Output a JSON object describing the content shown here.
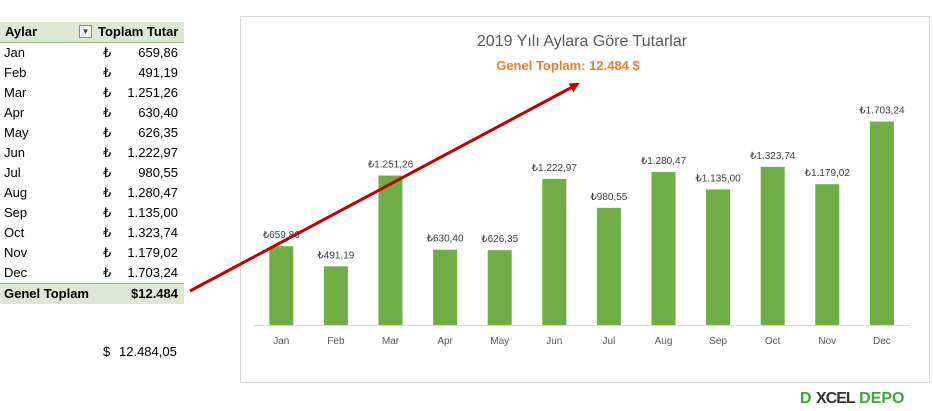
{
  "pivot": {
    "header": {
      "col1": "Aylar",
      "col2": "Toplam Tutar"
    },
    "currency_symbol": "₺",
    "rows": [
      {
        "month": "Jan",
        "value": "659,86"
      },
      {
        "month": "Feb",
        "value": "491,19"
      },
      {
        "month": "Mar",
        "value": "1.251,26"
      },
      {
        "month": "Apr",
        "value": "630,40"
      },
      {
        "month": "May",
        "value": "626,35"
      },
      {
        "month": "Jun",
        "value": "1.222,97"
      },
      {
        "month": "Jul",
        "value": "980,55"
      },
      {
        "month": "Aug",
        "value": "1.280,47"
      },
      {
        "month": "Sep",
        "value": "1.135,00"
      },
      {
        "month": "Oct",
        "value": "1.323,74"
      },
      {
        "month": "Nov",
        "value": "1.179,02"
      },
      {
        "month": "Dec",
        "value": "1.703,24"
      }
    ],
    "total": {
      "label": "Genel Toplam",
      "value": "$12.484"
    }
  },
  "extra_cell": {
    "currency": "$",
    "value": "12.484,05"
  },
  "chart_data": {
    "type": "bar",
    "title": "2019 Yılı Aylara Göre Tutarlar",
    "subtitle": "Genel Toplam: 12.484 $",
    "categories": [
      "Jan",
      "Feb",
      "Mar",
      "Apr",
      "May",
      "Jun",
      "Jul",
      "Aug",
      "Sep",
      "Oct",
      "Nov",
      "Dec"
    ],
    "values": [
      659.86,
      491.19,
      1251.26,
      630.4,
      626.35,
      1222.97,
      980.55,
      1280.47,
      1135.0,
      1323.74,
      1179.02,
      1703.24
    ],
    "data_labels": [
      "₺659,86",
      "₺491,19",
      "₺1.251,26",
      "₺630,40",
      "₺626,35",
      "₺1.222,97",
      "₺980,55",
      "₺1.280,47",
      "₺1.135,00",
      "₺1.323,74",
      "₺1.179,02",
      "₺1.703,24"
    ],
    "ylim": [
      0,
      1800
    ],
    "grid": false,
    "legend": "none",
    "bar_color": "#70ad47",
    "title_color": "#595959",
    "subtitle_color": "#ed7d31",
    "arrow_color": "#c00000"
  },
  "logo": {
    "part1": "D",
    "part2": "XCEL",
    "part3": "DEPO"
  }
}
